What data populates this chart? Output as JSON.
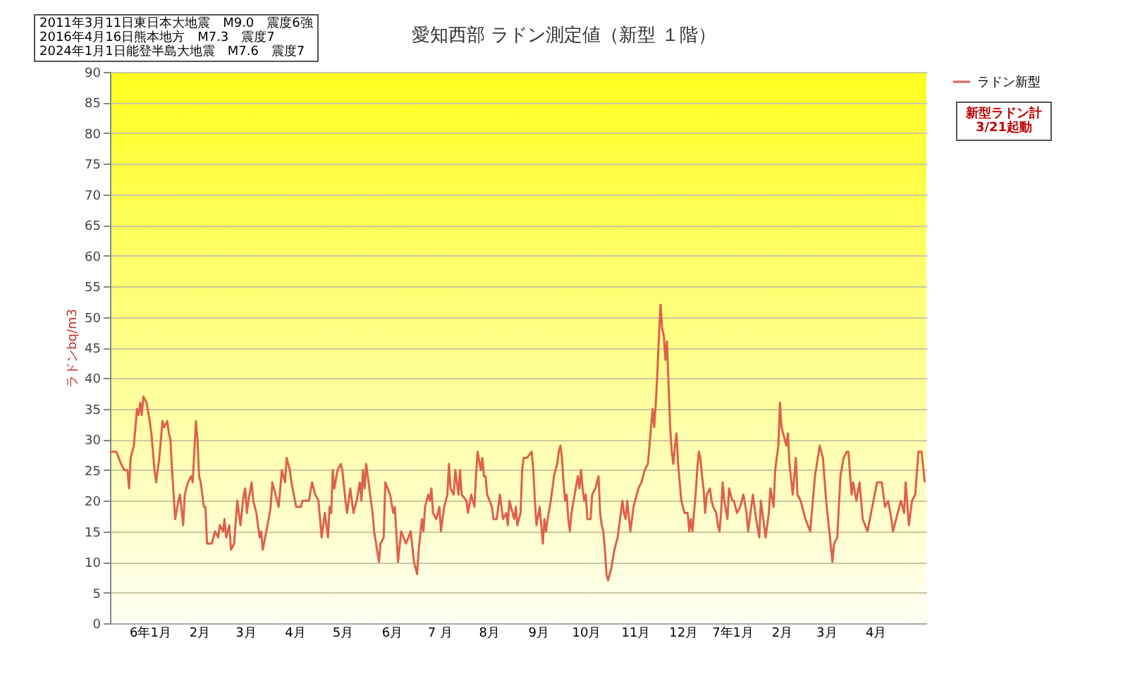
{
  "chart_data": {
    "type": "line",
    "title": "愛知西部 ラドン測定値（新型 １階）",
    "ylabel": "ラドンbq/m3",
    "annotations": [
      "2011年3月11日東日本大地震　M9.0　震度6強\n2016年4月16日熊本地方　M7.3　震度7\n2024年1月1日能登半島大地震　M7.6　震度7",
      "新型ラドン計\n3/21起動"
    ],
    "x": [
      "2023-12-07",
      "2023-12-11",
      "2023-12-14",
      "2023-12-16",
      "2023-12-18",
      "2023-12-19",
      "2023-12-20",
      "2023-12-22",
      "2023-12-24",
      "2023-12-25",
      "2023-12-26",
      "2023-12-27",
      "2023-12-28",
      "2023-12-30",
      "2024-01-01",
      "2024-01-02",
      "2024-01-04",
      "2024-01-05",
      "2024-01-07",
      "2024-01-09",
      "2024-01-10",
      "2024-01-12",
      "2024-01-13",
      "2024-01-14",
      "2024-01-15",
      "2024-01-17",
      "2024-01-19",
      "2024-01-20",
      "2024-01-22",
      "2024-01-23",
      "2024-01-25",
      "2024-01-27",
      "2024-01-28",
      "2024-01-29",
      "2024-01-30",
      "2024-01-31",
      "2024-02-01",
      "2024-02-02",
      "2024-02-04",
      "2024-02-05",
      "2024-02-06",
      "2024-02-09",
      "2024-02-11",
      "2024-02-13",
      "2024-02-14",
      "2024-02-16",
      "2024-02-17",
      "2024-02-18",
      "2024-02-20",
      "2024-02-21",
      "2024-02-23",
      "2024-02-25",
      "2024-02-27",
      "2024-02-29",
      "2024-03-01",
      "2024-03-02",
      "2024-03-03",
      "2024-03-05",
      "2024-03-06",
      "2024-03-08",
      "2024-03-10",
      "2024-03-11",
      "2024-03-12",
      "2024-03-15",
      "2024-03-17",
      "2024-03-18",
      "2024-03-19",
      "2024-03-21",
      "2024-03-22",
      "2024-03-24",
      "2024-03-26",
      "2024-03-27",
      "2024-03-29",
      "2024-03-30",
      "2024-04-02",
      "2024-04-05",
      "2024-04-06",
      "2024-04-10",
      "2024-04-12",
      "2024-04-14",
      "2024-04-16",
      "2024-04-18",
      "2024-04-20",
      "2024-04-22",
      "2024-04-23",
      "2024-04-24",
      "2024-04-25",
      "2024-04-26",
      "2024-04-28",
      "2024-04-30",
      "2024-05-01",
      "2024-05-03",
      "2024-05-04",
      "2024-05-06",
      "2024-05-08",
      "2024-05-10",
      "2024-05-12",
      "2024-05-13",
      "2024-05-14",
      "2024-05-15",
      "2024-05-16",
      "2024-05-18",
      "2024-05-20",
      "2024-05-21",
      "2024-05-24",
      "2024-05-25",
      "2024-05-27",
      "2024-05-28",
      "2024-05-31",
      "2024-06-02",
      "2024-06-03",
      "2024-06-05",
      "2024-06-07",
      "2024-06-10",
      "2024-06-13",
      "2024-06-15",
      "2024-06-17",
      "2024-06-18",
      "2024-06-20",
      "2024-06-21",
      "2024-06-22",
      "2024-06-24",
      "2024-06-25",
      "2024-06-26",
      "2024-06-27",
      "2024-06-29",
      "2024-07-01",
      "2024-07-02",
      "2024-07-04",
      "2024-07-06",
      "2024-07-07",
      "2024-07-08",
      "2024-07-10",
      "2024-07-11",
      "2024-07-13",
      "2024-07-14",
      "2024-07-15",
      "2024-07-18",
      "2024-07-19",
      "2024-07-21",
      "2024-07-23",
      "2024-07-24",
      "2024-07-25",
      "2024-07-27",
      "2024-07-28",
      "2024-07-29",
      "2024-07-30",
      "2024-07-31",
      "2024-08-03",
      "2024-08-04",
      "2024-08-06",
      "2024-08-08",
      "2024-08-10",
      "2024-08-12",
      "2024-08-13",
      "2024-08-14",
      "2024-08-17",
      "2024-08-18",
      "2024-08-19",
      "2024-08-21",
      "2024-08-22",
      "2024-08-23",
      "2024-08-25",
      "2024-08-28",
      "2024-08-29",
      "2024-08-30",
      "2024-08-31",
      "2024-09-02",
      "2024-09-04",
      "2024-09-05",
      "2024-09-06",
      "2024-09-07",
      "2024-09-09",
      "2024-09-11",
      "2024-09-13",
      "2024-09-14",
      "2024-09-15",
      "2024-09-16",
      "2024-09-17",
      "2024-09-18",
      "2024-09-19",
      "2024-09-20",
      "2024-09-21",
      "2024-09-22",
      "2024-09-24",
      "2024-09-26",
      "2024-09-27",
      "2024-09-28",
      "2024-09-29",
      "2024-09-30",
      "2024-10-01",
      "2024-10-02",
      "2024-10-04",
      "2024-10-05",
      "2024-10-07",
      "2024-10-09",
      "2024-10-10",
      "2024-10-11",
      "2024-10-12",
      "2024-10-13",
      "2024-10-14",
      "2024-10-15",
      "2024-10-17",
      "2024-10-19",
      "2024-10-21",
      "2024-10-23",
      "2024-10-24",
      "2024-10-25",
      "2024-10-26",
      "2024-10-27",
      "2024-10-29",
      "2024-10-31",
      "2024-11-01",
      "2024-11-03",
      "2024-11-05",
      "2024-11-07",
      "2024-11-09",
      "2024-11-10",
      "2024-11-11",
      "2024-11-12",
      "2024-11-13",
      "2024-11-14",
      "2024-11-15",
      "2024-11-16",
      "2024-11-17",
      "2024-11-18",
      "2024-11-19",
      "2024-11-20",
      "2024-11-21",
      "2024-11-22",
      "2024-11-23",
      "2024-11-24",
      "2024-11-25",
      "2024-11-26",
      "2024-11-27",
      "2024-11-28",
      "2024-11-29",
      "2024-11-30",
      "2024-12-02",
      "2024-12-04",
      "2024-12-05",
      "2024-12-06",
      "2024-12-07",
      "2024-12-08",
      "2024-12-09",
      "2024-12-10",
      "2024-12-11",
      "2024-12-12",
      "2024-12-13",
      "2024-12-14",
      "2024-12-15",
      "2024-12-16",
      "2024-12-18",
      "2024-12-19",
      "2024-12-20",
      "2024-12-22",
      "2024-12-23",
      "2024-12-24",
      "2024-12-25",
      "2024-12-26",
      "2024-12-27",
      "2024-12-29",
      "2024-12-30",
      "2025-01-01",
      "2025-01-02",
      "2025-01-04",
      "2025-01-06",
      "2025-01-08",
      "2025-01-10",
      "2025-01-11",
      "2025-01-13",
      "2025-01-14",
      "2025-01-16",
      "2025-01-18",
      "2025-01-19",
      "2025-01-21",
      "2025-01-22",
      "2025-01-24",
      "2025-01-25",
      "2025-01-27",
      "2025-01-28",
      "2025-01-30",
      "2025-01-31",
      "2025-02-01",
      "2025-02-02",
      "2025-02-04",
      "2025-02-05",
      "2025-02-06",
      "2025-02-08",
      "2025-02-10",
      "2025-02-11",
      "2025-02-13",
      "2025-02-16",
      "2025-02-19",
      "2025-02-22",
      "2025-02-25",
      "2025-02-27",
      "2025-03-01",
      "2025-03-03",
      "2025-03-05",
      "2025-03-06",
      "2025-03-08",
      "2025-03-10",
      "2025-03-12",
      "2025-03-14",
      "2025-03-15",
      "2025-03-17",
      "2025-03-18",
      "2025-03-20",
      "2025-03-22",
      "2025-03-24",
      "2025-03-27",
      "2025-03-30",
      "2025-04-02",
      "2025-04-05",
      "2025-04-07",
      "2025-04-09",
      "2025-04-11",
      "2025-04-12",
      "2025-04-15",
      "2025-04-17",
      "2025-04-19",
      "2025-04-20",
      "2025-04-22",
      "2025-04-24",
      "2025-04-26",
      "2025-04-28",
      "2025-04-30",
      "2025-05-02"
    ],
    "series": [
      {
        "name": "ラドン新型",
        "color": "#e0604a",
        "values": [
          28,
          28,
          26,
          25,
          25,
          22,
          27,
          29,
          35,
          34,
          36,
          34,
          37,
          36,
          33,
          31,
          25,
          23,
          27,
          33,
          32,
          33,
          31,
          30,
          25,
          17,
          20,
          21,
          16,
          21,
          23,
          24,
          23,
          28,
          33,
          30,
          24,
          23,
          19,
          19,
          13,
          13,
          15,
          14,
          16,
          15,
          17,
          14,
          16,
          12,
          13,
          20,
          16,
          21,
          22,
          18,
          20,
          23,
          20,
          18,
          14,
          15,
          12,
          16,
          19,
          23,
          22,
          20,
          19,
          25,
          23,
          27,
          25,
          23,
          19,
          19,
          20,
          20,
          23,
          21,
          20,
          14,
          18,
          14,
          19,
          18,
          25,
          22,
          25,
          26,
          25,
          20,
          18,
          22,
          18,
          20,
          23,
          20,
          25,
          22,
          26,
          22,
          18,
          15,
          10,
          13,
          14,
          23,
          21,
          18,
          19,
          10,
          15,
          13,
          15,
          10,
          8,
          12,
          17,
          15,
          19,
          21,
          20,
          22,
          18,
          17,
          19,
          15,
          19,
          21,
          26,
          22,
          21,
          25,
          21,
          25,
          21,
          20,
          18,
          21,
          19,
          24,
          28,
          25,
          27,
          24,
          24,
          21,
          19,
          17,
          17,
          21,
          17,
          18,
          16,
          20,
          17,
          19,
          16,
          18,
          25,
          27,
          27,
          28,
          25,
          20,
          16,
          19,
          13,
          17,
          15,
          17,
          20,
          24,
          26,
          28,
          29,
          27,
          23,
          20,
          21,
          17,
          15,
          18,
          21,
          24,
          22,
          25,
          22,
          20,
          21,
          17,
          17,
          21,
          22,
          24,
          18,
          16,
          15,
          12,
          8,
          7,
          9,
          12,
          14,
          18,
          20,
          18,
          17,
          20,
          15,
          19,
          20,
          22,
          23,
          25,
          26,
          29,
          32,
          35,
          32,
          36,
          41,
          47,
          52,
          48,
          47,
          43,
          46,
          39,
          32,
          28,
          26,
          29,
          31,
          26,
          23,
          20,
          18,
          18,
          15,
          17,
          15,
          18,
          21,
          25,
          28,
          27,
          24,
          22,
          18,
          21,
          22,
          20,
          19,
          18,
          16,
          15,
          18,
          23,
          20,
          17,
          22,
          20,
          20,
          18,
          19,
          21,
          18,
          15,
          19,
          21,
          17,
          14,
          20,
          16,
          14,
          18,
          22,
          19,
          25,
          29,
          36,
          32,
          31,
          29,
          31,
          26,
          21,
          27,
          21,
          20,
          17,
          15,
          24,
          29,
          27,
          20,
          15,
          10,
          13,
          14,
          24,
          27,
          28,
          28,
          21,
          23,
          20,
          23,
          17,
          15,
          19,
          23,
          23,
          19,
          20,
          17,
          15,
          18,
          20,
          18,
          23,
          16,
          20,
          21,
          28,
          28,
          23
        ]
      }
    ],
    "xlim": [
      "2023-12-07",
      "2025-05-03"
    ],
    "xticks": [
      {
        "value": "2024-01-01",
        "label": "6年1月"
      },
      {
        "value": "2024-02-01",
        "label": "2月"
      },
      {
        "value": "2024-03-01",
        "label": "3月"
      },
      {
        "value": "2024-04-01",
        "label": "4月"
      },
      {
        "value": "2024-05-01",
        "label": "5月"
      },
      {
        "value": "2024-06-01",
        "label": "6月"
      },
      {
        "value": "2024-07-01",
        "label": "7 月"
      },
      {
        "value": "2024-08-01",
        "label": "8月"
      },
      {
        "value": "2024-09-01",
        "label": "9月"
      },
      {
        "value": "2024-10-01",
        "label": "10月"
      },
      {
        "value": "2024-11-01",
        "label": "11月"
      },
      {
        "value": "2024-12-01",
        "label": "12月"
      },
      {
        "value": "2025-01-01",
        "label": "7年1月"
      },
      {
        "value": "2025-02-01",
        "label": "2月"
      },
      {
        "value": "2025-03-01",
        "label": "3月"
      },
      {
        "value": "2025-04-01",
        "label": "4月"
      }
    ],
    "ylim": [
      0,
      90
    ],
    "yticks": [
      0,
      5,
      10,
      15,
      20,
      25,
      30,
      35,
      40,
      45,
      50,
      55,
      60,
      65,
      70,
      75,
      80,
      85,
      90
    ],
    "grid": "y",
    "legend": "top right",
    "line_style": "solid"
  }
}
